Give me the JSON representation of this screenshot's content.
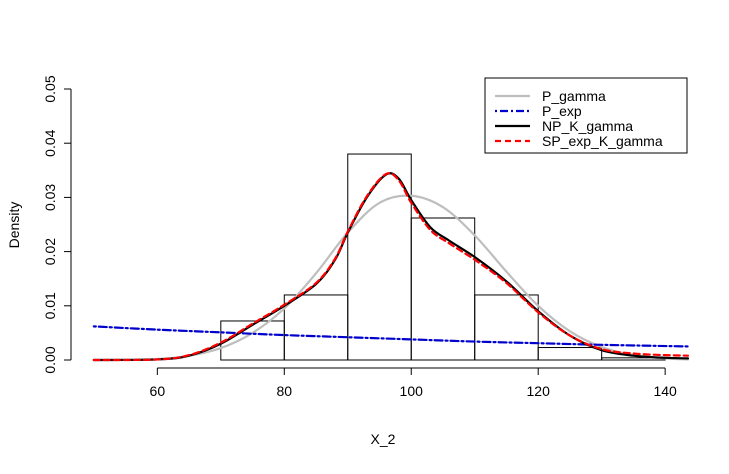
{
  "chart_data": {
    "type": "histogram-density",
    "xlabel": "X_2",
    "ylabel": "Density",
    "xlim": [
      46.4,
      143.6
    ],
    "ylim": [
      0,
      0.05
    ],
    "x_ticks": [
      60,
      80,
      100,
      120,
      140
    ],
    "y_ticks": [
      0.0,
      0.01,
      0.02,
      0.03,
      0.04,
      0.05
    ],
    "x_tick_labels": [
      "60",
      "80",
      "100",
      "120",
      "140"
    ],
    "y_tick_labels": [
      "0.00",
      "0.01",
      "0.02",
      "0.03",
      "0.04",
      "0.05"
    ],
    "histogram": {
      "bin_edges": [
        70,
        80,
        90,
        100,
        110,
        120,
        130,
        140
      ],
      "densities": [
        0.0072,
        0.012,
        0.038,
        0.0262,
        0.012,
        0.0023,
        0.0004
      ]
    },
    "legend_position": "top-right",
    "series": [
      {
        "name": "P_gamma",
        "color": "#bebebe",
        "dash": "solid",
        "x": [
          50,
          60,
          65,
          70,
          75,
          80,
          85,
          90,
          95,
          100,
          105,
          110,
          115,
          120,
          125,
          130,
          135,
          140,
          143.6
        ],
        "y": [
          0.0,
          0.0002,
          0.0008,
          0.0022,
          0.005,
          0.0095,
          0.016,
          0.0235,
          0.029,
          0.0303,
          0.0282,
          0.023,
          0.0163,
          0.01,
          0.0053,
          0.0024,
          0.0009,
          0.0003,
          0.0001
        ]
      },
      {
        "name": "P_exp",
        "color": "#0000cd",
        "dash": "dotdash",
        "x": [
          50,
          60,
          70,
          80,
          90,
          100,
          110,
          120,
          130,
          143.6
        ],
        "y": [
          0.0062,
          0.0056,
          0.0051,
          0.0046,
          0.0042,
          0.0038,
          0.0034,
          0.0031,
          0.0028,
          0.0025
        ]
      },
      {
        "name": "NP_K_gamma",
        "color": "#000000",
        "dash": "solid",
        "x": [
          50,
          60,
          65,
          70,
          75,
          80,
          85,
          88,
          90,
          93,
          96,
          98,
          100,
          103,
          106,
          110,
          115,
          120,
          125,
          130,
          135,
          140,
          143.6
        ],
        "y": [
          0.0,
          0.0001,
          0.0008,
          0.003,
          0.0065,
          0.01,
          0.014,
          0.0185,
          0.0235,
          0.03,
          0.0342,
          0.0335,
          0.0295,
          0.0245,
          0.022,
          0.019,
          0.0145,
          0.009,
          0.0045,
          0.0018,
          0.0008,
          0.0004,
          0.0003
        ]
      },
      {
        "name": "SP_exp_K_gamma",
        "color": "#ff0000",
        "dash": "dashed",
        "x": [
          50,
          60,
          65,
          70,
          75,
          80,
          85,
          88,
          90,
          93,
          96,
          98,
          100,
          103,
          106,
          110,
          115,
          120,
          125,
          130,
          135,
          140,
          143.6
        ],
        "y": [
          0.0,
          0.0001,
          0.0009,
          0.0032,
          0.0067,
          0.0102,
          0.0142,
          0.0187,
          0.0237,
          0.0302,
          0.0343,
          0.0332,
          0.029,
          0.024,
          0.0215,
          0.0185,
          0.0142,
          0.0088,
          0.0045,
          0.002,
          0.0012,
          0.0009,
          0.0008
        ]
      }
    ]
  }
}
